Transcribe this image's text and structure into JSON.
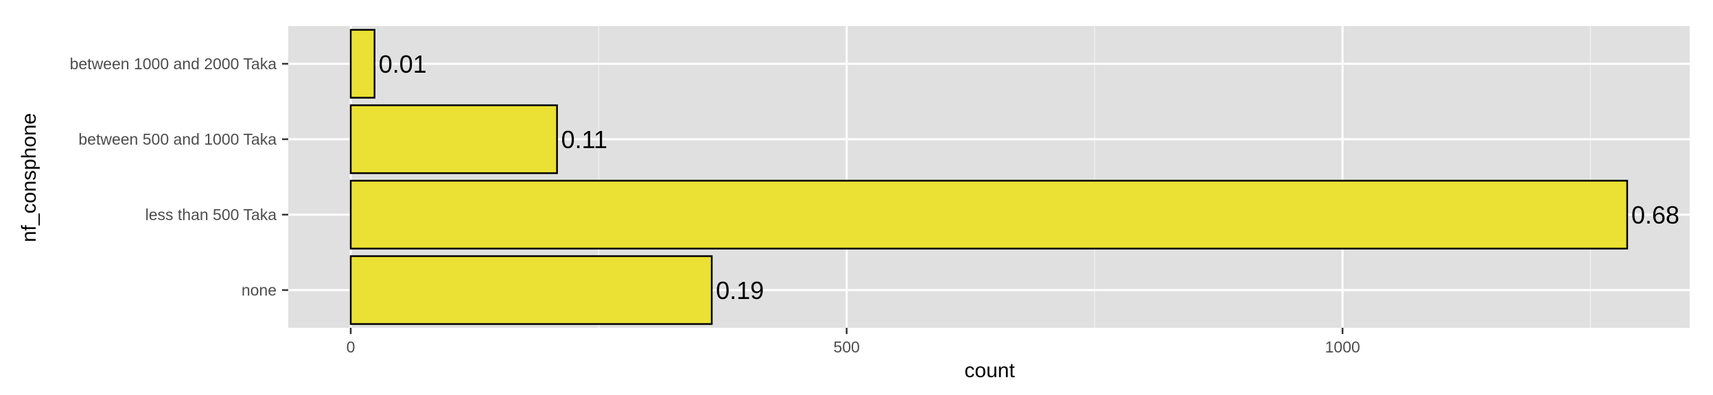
{
  "chart_data": {
    "type": "bar",
    "orientation": "horizontal",
    "categories": [
      "none",
      "less than 500 Taka",
      "between 500 and 1000 Taka",
      "between 1000 and 2000 Taka"
    ],
    "values": [
      364,
      1287,
      208,
      24
    ],
    "data_labels": [
      "0.19",
      "0.68",
      "0.11",
      "0.01"
    ],
    "xlabel": "count",
    "ylabel": "nf_consphone",
    "xlim": [
      -63,
      1350
    ],
    "xticks": [
      0,
      500,
      1000
    ],
    "xtick_labels": [
      "0",
      "500",
      "1000"
    ],
    "grid": true,
    "legend": "none",
    "colors": {
      "bar_fill": "#ebe034",
      "bar_stroke": "#000000",
      "panel_background": "#e0e0e0",
      "grid_major": "#ffffff",
      "grid_minor": "#efefef",
      "tick_text": "#4d4d4d"
    }
  }
}
